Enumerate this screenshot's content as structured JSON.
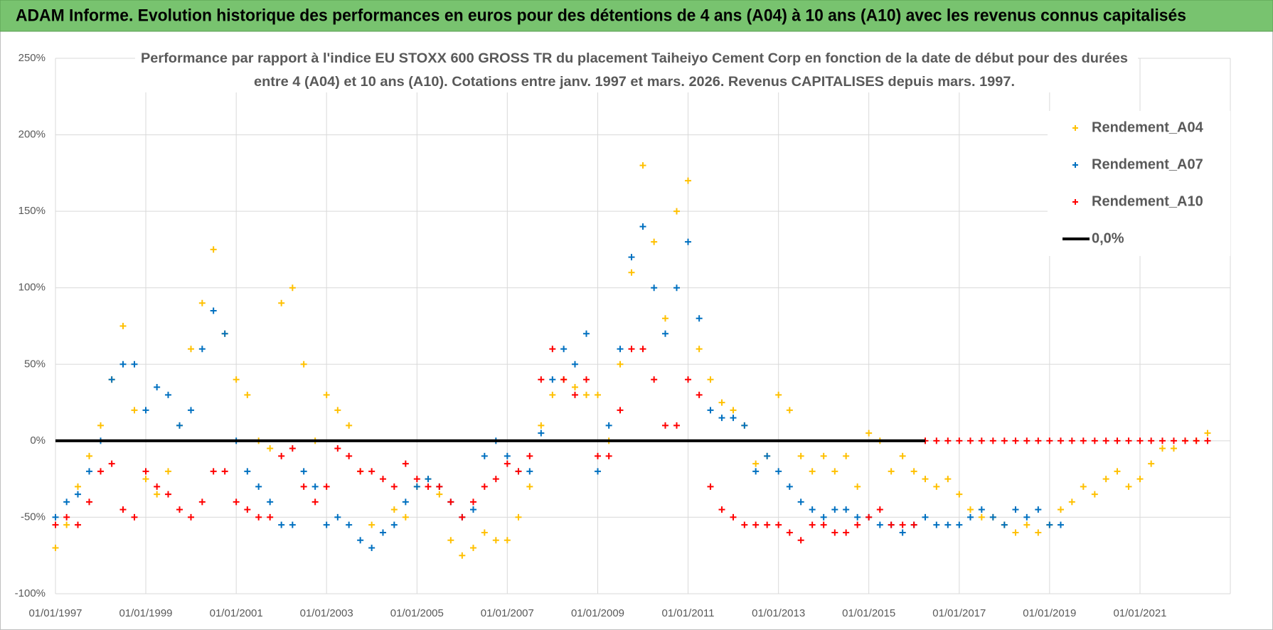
{
  "header": {
    "title": "ADAM Informe. Evolution historique des performances en euros pour des détentions de 4 ans (A04) à 10 ans (A10) avec les revenus connus capitalisés"
  },
  "chart_data": {
    "type": "scatter",
    "title": "Performance par rapport à l'indice EU STOXX 600 GROSS TR  du placement Taiheiyo Cement Corp en fonction de la date de début pour des durées",
    "subtitle": "entre 4 (A04) et 10 ans (A10).  Cotations entre janv. 1997 et mars. 2026.  Revenus CAPITALISES depuis mars. 1997.",
    "x": [
      "01/01/1997",
      "01/04/1997",
      "01/07/1997",
      "01/10/1997",
      "01/01/1998",
      "01/04/1998",
      "01/07/1998",
      "01/10/1998",
      "01/01/1999",
      "01/04/1999",
      "01/07/1999",
      "01/10/1999",
      "01/01/2000",
      "01/04/2000",
      "01/07/2000",
      "01/10/2000",
      "01/01/2001",
      "01/04/2001",
      "01/07/2001",
      "01/10/2001",
      "01/01/2002",
      "01/04/2002",
      "01/07/2002",
      "01/10/2002",
      "01/01/2003",
      "01/04/2003",
      "01/07/2003",
      "01/10/2003",
      "01/01/2004",
      "01/04/2004",
      "01/07/2004",
      "01/10/2004",
      "01/01/2005",
      "01/04/2005",
      "01/07/2005",
      "01/10/2005",
      "01/01/2006",
      "01/04/2006",
      "01/07/2006",
      "01/10/2006",
      "01/01/2007",
      "01/04/2007",
      "01/07/2007",
      "01/10/2007",
      "01/01/2008",
      "01/04/2008",
      "01/07/2008",
      "01/10/2008",
      "01/01/2009",
      "01/04/2009",
      "01/07/2009",
      "01/10/2009",
      "01/01/2010",
      "01/04/2010",
      "01/07/2010",
      "01/10/2010",
      "01/01/2011",
      "01/04/2011",
      "01/07/2011",
      "01/10/2011",
      "01/01/2012",
      "01/04/2012",
      "01/07/2012",
      "01/10/2012",
      "01/01/2013",
      "01/04/2013",
      "01/07/2013",
      "01/10/2013",
      "01/01/2014",
      "01/04/2014",
      "01/07/2014",
      "01/10/2014",
      "01/01/2015",
      "01/04/2015",
      "01/07/2015",
      "01/10/2015",
      "01/01/2016",
      "01/04/2016",
      "01/07/2016",
      "01/10/2016",
      "01/01/2017",
      "01/04/2017",
      "01/07/2017",
      "01/10/2017",
      "01/01/2018",
      "01/04/2018",
      "01/07/2018",
      "01/10/2018",
      "01/01/2019",
      "01/04/2019",
      "01/07/2019",
      "01/10/2019",
      "01/01/2020",
      "01/04/2020",
      "01/07/2020",
      "01/10/2020",
      "01/01/2021",
      "01/04/2021",
      "01/07/2021",
      "01/10/2021",
      "01/01/2022",
      "01/04/2022",
      "01/07/2022"
    ],
    "series": [
      {
        "name": "Rendement_A04",
        "color": "#FFC000",
        "values": [
          -70,
          -55,
          -30,
          -10,
          10,
          40,
          75,
          20,
          -25,
          -35,
          -20,
          10,
          60,
          90,
          125,
          70,
          40,
          30,
          0,
          -5,
          90,
          100,
          50,
          0,
          30,
          20,
          10,
          -20,
          -55,
          -60,
          -45,
          -50,
          -30,
          -25,
          -35,
          -65,
          -75,
          -70,
          -60,
          -65,
          -65,
          -50,
          -30,
          10,
          30,
          40,
          35,
          30,
          30,
          0,
          50,
          110,
          180,
          130,
          80,
          150,
          170,
          60,
          40,
          25,
          20,
          10,
          -15,
          -10,
          30,
          20,
          -10,
          -20,
          -10,
          -20,
          -10,
          -30,
          5,
          0,
          -20,
          -10,
          -20,
          -25,
          -30,
          -25,
          -35,
          -45,
          -50,
          -50,
          -55,
          -60,
          -55,
          -60,
          -55,
          -45,
          -40,
          -30,
          -35,
          -25,
          -20,
          -30,
          -25,
          -15,
          -5,
          -5,
          0,
          0,
          5
        ]
      },
      {
        "name": "Rendement_A07",
        "color": "#0070C0",
        "values": [
          -50,
          -40,
          -35,
          -20,
          0,
          40,
          50,
          50,
          20,
          35,
          30,
          10,
          20,
          60,
          85,
          70,
          0,
          -20,
          -30,
          -40,
          -55,
          -55,
          -20,
          -30,
          -55,
          -50,
          -55,
          -65,
          -70,
          -60,
          -55,
          -40,
          -30,
          -25,
          -30,
          -40,
          -50,
          -45,
          -10,
          0,
          -10,
          -20,
          -20,
          5,
          40,
          60,
          50,
          70,
          -20,
          10,
          60,
          120,
          140,
          100,
          70,
          100,
          130,
          80,
          20,
          15,
          15,
          10,
          -20,
          -10,
          -20,
          -30,
          -40,
          -45,
          -50,
          -45,
          -45,
          -50,
          -50,
          -55,
          -55,
          -60,
          -55,
          -50,
          -55,
          -55,
          -55,
          -50,
          -45,
          -50,
          -55,
          -45,
          -50,
          -45,
          -55,
          -55,
          null,
          null,
          null,
          null,
          null,
          null,
          null,
          null,
          null,
          null,
          null,
          null,
          null
        ]
      },
      {
        "name": "Rendement_A10",
        "color": "#FF0000",
        "values": [
          -55,
          -50,
          -55,
          -40,
          -20,
          -15,
          -45,
          -50,
          -20,
          -30,
          -35,
          -45,
          -50,
          -40,
          -20,
          -20,
          -40,
          -45,
          -50,
          -50,
          -10,
          -5,
          -30,
          -40,
          -30,
          -5,
          -10,
          -20,
          -20,
          -25,
          -30,
          -15,
          -25,
          -30,
          -30,
          -40,
          -50,
          -40,
          -30,
          -25,
          -15,
          -20,
          -10,
          40,
          60,
          40,
          30,
          40,
          -10,
          -10,
          20,
          60,
          60,
          40,
          10,
          10,
          40,
          30,
          -30,
          -45,
          -50,
          -55,
          -55,
          -55,
          -55,
          -60,
          -65,
          -55,
          -55,
          -60,
          -60,
          -55,
          -50,
          -45,
          -55,
          -55,
          -55,
          0,
          0,
          0,
          0,
          0,
          0,
          0,
          0,
          0,
          0,
          0,
          0,
          0,
          0,
          0,
          0,
          0,
          0,
          0,
          0,
          0,
          0,
          0,
          0,
          0,
          0
        ]
      },
      {
        "name": "0,0%",
        "color": "#000000",
        "type": "line",
        "values": [
          0,
          0,
          0,
          0,
          0,
          0,
          0,
          0,
          0,
          0,
          0,
          0,
          0,
          0,
          0,
          0,
          0,
          0,
          0,
          0,
          0,
          0,
          0,
          0,
          0,
          0,
          0,
          0,
          0,
          0,
          0,
          0,
          0,
          0,
          0,
          0,
          0,
          0,
          0,
          0,
          0,
          0,
          0,
          0,
          0,
          0,
          0,
          0,
          0,
          0,
          0,
          0,
          0,
          0,
          0,
          0,
          0,
          0,
          0,
          0,
          0,
          0,
          0,
          0,
          0,
          0,
          0,
          0,
          0,
          0,
          0,
          0,
          0,
          0,
          0,
          0,
          0,
          0,
          null,
          null,
          null,
          null,
          null,
          null,
          null,
          null,
          null,
          null,
          null,
          null,
          null,
          null,
          null,
          null,
          null,
          null,
          null,
          null,
          null,
          null,
          null,
          null,
          null
        ]
      }
    ],
    "xlim": [
      "01/01/1997",
      "01/01/2023"
    ],
    "xticks": [
      "01/01/1997",
      "01/01/1999",
      "01/01/2001",
      "01/01/2003",
      "01/01/2005",
      "01/01/2007",
      "01/01/2009",
      "01/01/2011",
      "01/01/2013",
      "01/01/2015",
      "01/01/2017",
      "01/01/2019",
      "01/01/2021"
    ],
    "ylim": [
      -100,
      250
    ],
    "yticks": [
      {
        "value": -100,
        "label": "-100%"
      },
      {
        "value": -50,
        "label": "-50%"
      },
      {
        "value": 0,
        "label": "0%"
      },
      {
        "value": 50,
        "label": "50%"
      },
      {
        "value": 100,
        "label": "100%"
      },
      {
        "value": 150,
        "label": "150%"
      },
      {
        "value": 200,
        "label": "200%"
      },
      {
        "value": 250,
        "label": "250%"
      }
    ],
    "grid": true,
    "legend": "top-right"
  }
}
